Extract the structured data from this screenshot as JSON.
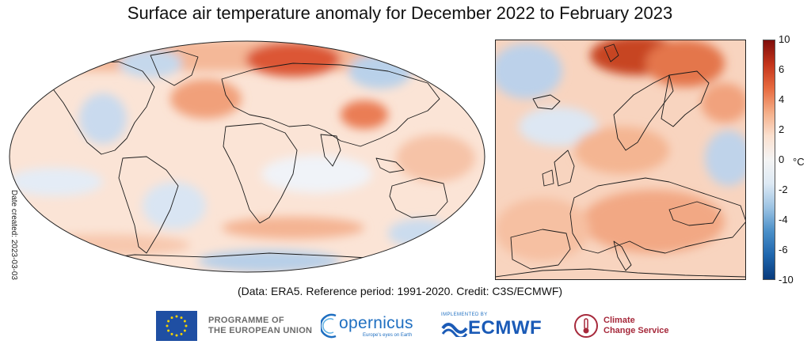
{
  "title": "Surface air temperature anomaly for December 2022 to February 2023",
  "date_created": "Date created: 2023-03-03",
  "caption": "(Data: ERA5.  Reference period: 1991-2020.  Credit: C3S/ECMWF)",
  "colorbar": {
    "unit": "°C",
    "ticks": [
      "10",
      "6",
      "4",
      "2",
      "0",
      "-2",
      "-4",
      "-6",
      "-10"
    ],
    "colors": [
      "#083a7c",
      "#1f66ad",
      "#4a8fc8",
      "#9cc3e3",
      "#dde9f4",
      "#f4f4f4",
      "#fbe0cf",
      "#f4ad87",
      "#e76a3f",
      "#c3341b",
      "#7f0d0b"
    ]
  },
  "logos": {
    "eu": {
      "line1": "PROGRAMME OF",
      "line2": "THE EUROPEAN UNION"
    },
    "copernicus": {
      "word": "opernicus",
      "tagline": "Europe's eyes on Earth"
    },
    "ecmwf": {
      "small": "IMPLEMENTED BY",
      "word": "ECMWF"
    },
    "c3s": {
      "line1": "Climate",
      "line2": "Change Service"
    }
  }
}
